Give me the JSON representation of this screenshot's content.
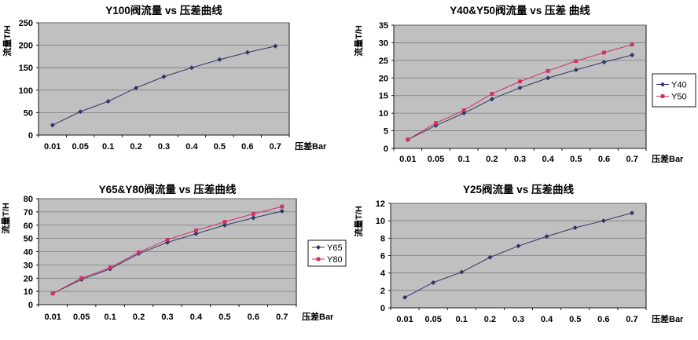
{
  "page": {
    "background": "#ffffff"
  },
  "chart_data": [
    {
      "type": "line",
      "title": "Y100阀流量 vs 压差曲线",
      "ylabel": "流量T/H",
      "xlabel": "压差Bar",
      "categories": [
        "0.01",
        "0.05",
        "0.1",
        "0.2",
        "0.3",
        "0.4",
        "0.5",
        "0.6",
        "0.7"
      ],
      "yticks": [
        0,
        50,
        100,
        150,
        200,
        250
      ],
      "ylim": [
        0,
        250
      ],
      "grid": true,
      "plot_bg": "#c0c0c0",
      "gridline_color": "#7d7d7d",
      "legend_position": null,
      "series": [
        {
          "name": "Y100",
          "color": "#333366",
          "marker": "diamond",
          "values": [
            22,
            52,
            75,
            105,
            130,
            150,
            168,
            184,
            198
          ]
        }
      ]
    },
    {
      "type": "line",
      "title": "Y40&Y50阀流量 vs 压差 曲线",
      "ylabel": "流量T/H",
      "xlabel": "压差Bar",
      "categories": [
        "0.01",
        "0.05",
        "0.1",
        "0.2",
        "0.3",
        "0.4",
        "0.5",
        "0.6",
        "0.7"
      ],
      "yticks": [
        0,
        5,
        10,
        15,
        20,
        25,
        30,
        35
      ],
      "ylim": [
        0,
        35
      ],
      "grid": true,
      "plot_bg": "#c0c0c0",
      "gridline_color": "#7d7d7d",
      "legend_position": "right",
      "series": [
        {
          "name": "Y40",
          "color": "#333366",
          "marker": "diamond",
          "values": [
            2.5,
            6.5,
            10,
            14,
            17.2,
            20,
            22.3,
            24.5,
            26.5
          ]
        },
        {
          "name": "Y50",
          "color": "#cc3366",
          "marker": "square",
          "values": [
            2.5,
            7.2,
            10.8,
            15.5,
            19,
            22,
            24.8,
            27.2,
            29.5
          ]
        }
      ]
    },
    {
      "type": "line",
      "title": "Y65&Y80阀流量 vs 压差曲线",
      "ylabel": "流量T/H",
      "xlabel": "压差Bar",
      "categories": [
        "0.01",
        "0.05",
        "0.1",
        "0.2",
        "0.3",
        "0.4",
        "0.5",
        "0.6",
        "0.7"
      ],
      "yticks": [
        0,
        10,
        20,
        30,
        40,
        50,
        60,
        70,
        80
      ],
      "ylim": [
        0,
        80
      ],
      "grid": true,
      "plot_bg": "#c0c0c0",
      "gridline_color": "#7d7d7d",
      "legend_position": "right",
      "series": [
        {
          "name": "Y65",
          "color": "#333366",
          "marker": "diamond",
          "values": [
            8.5,
            19,
            27,
            38.5,
            47,
            53.5,
            60,
            65.5,
            70.5
          ]
        },
        {
          "name": "Y80",
          "color": "#cc3366",
          "marker": "square",
          "values": [
            8.5,
            20,
            28,
            39.5,
            49,
            56,
            62.5,
            68.5,
            74
          ]
        }
      ]
    },
    {
      "type": "line",
      "title": "Y25阀流量 vs 压差曲线",
      "ylabel": "流量T/H",
      "xlabel": "压差Bar",
      "categories": [
        "0.01",
        "0.05",
        "0.1",
        "0.2",
        "0.3",
        "0.4",
        "0.5",
        "0.6",
        "0.7"
      ],
      "yticks": [
        0,
        2,
        4,
        6,
        8,
        10,
        12
      ],
      "ylim": [
        0,
        12
      ],
      "grid": true,
      "plot_bg": "#c0c0c0",
      "gridline_color": "#7d7d7d",
      "legend_position": null,
      "series": [
        {
          "name": "Y25",
          "color": "#333366",
          "marker": "diamond",
          "values": [
            1.2,
            2.9,
            4.1,
            5.8,
            7.1,
            8.2,
            9.2,
            10,
            10.9
          ]
        }
      ]
    }
  ]
}
